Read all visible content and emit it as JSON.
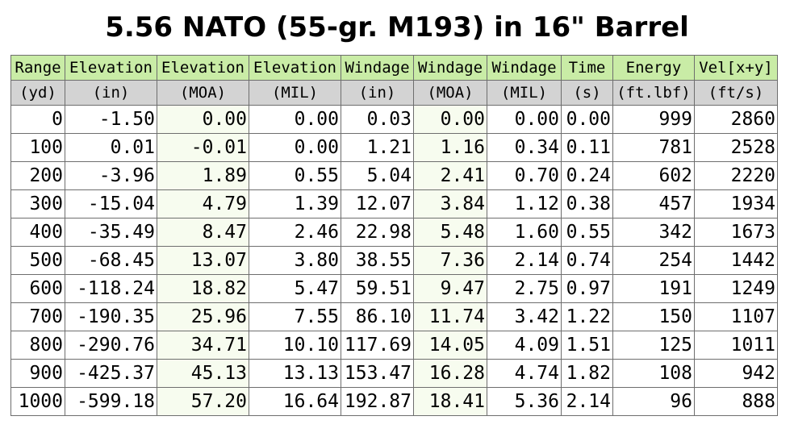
{
  "title": "5.56 NATO (55-gr. M193) in 16\" Barrel",
  "columns": [
    {
      "header": "Range",
      "unit": "(yd)"
    },
    {
      "header": "Elevation",
      "unit": "(in)"
    },
    {
      "header": "Elevation",
      "unit": "(MOA)"
    },
    {
      "header": "Elevation",
      "unit": "(MIL)"
    },
    {
      "header": "Windage",
      "unit": "(in)"
    },
    {
      "header": "Windage",
      "unit": "(MOA)"
    },
    {
      "header": "Windage",
      "unit": "(MIL)"
    },
    {
      "header": "Time",
      "unit": "(s)"
    },
    {
      "header": "Energy",
      "unit": "(ft.lbf)"
    },
    {
      "header": "Vel[x+y]",
      "unit": "(ft/s)"
    }
  ],
  "rows": [
    [
      "0",
      "-1.50",
      "0.00",
      "0.00",
      "0.03",
      "0.00",
      "0.00",
      "0.00",
      "999",
      "2860"
    ],
    [
      "100",
      "0.01",
      "-0.01",
      "0.00",
      "1.21",
      "1.16",
      "0.34",
      "0.11",
      "781",
      "2528"
    ],
    [
      "200",
      "-3.96",
      "1.89",
      "0.55",
      "5.04",
      "2.41",
      "0.70",
      "0.24",
      "602",
      "2220"
    ],
    [
      "300",
      "-15.04",
      "4.79",
      "1.39",
      "12.07",
      "3.84",
      "1.12",
      "0.38",
      "457",
      "1934"
    ],
    [
      "400",
      "-35.49",
      "8.47",
      "2.46",
      "22.98",
      "5.48",
      "1.60",
      "0.55",
      "342",
      "1673"
    ],
    [
      "500",
      "-68.45",
      "13.07",
      "3.80",
      "38.55",
      "7.36",
      "2.14",
      "0.74",
      "254",
      "1442"
    ],
    [
      "600",
      "-118.24",
      "18.82",
      "5.47",
      "59.51",
      "9.47",
      "2.75",
      "0.97",
      "191",
      "1249"
    ],
    [
      "700",
      "-190.35",
      "25.96",
      "7.55",
      "86.10",
      "11.74",
      "3.42",
      "1.22",
      "150",
      "1107"
    ],
    [
      "800",
      "-290.76",
      "34.71",
      "10.10",
      "117.69",
      "14.05",
      "4.09",
      "1.51",
      "125",
      "1011"
    ],
    [
      "900",
      "-425.37",
      "45.13",
      "13.13",
      "153.47",
      "16.28",
      "4.74",
      "1.82",
      "108",
      "942"
    ],
    [
      "1000",
      "-599.18",
      "57.20",
      "16.64",
      "192.87",
      "18.41",
      "5.36",
      "2.14",
      "96",
      "888"
    ]
  ],
  "colors": {
    "header_bg": "#c9eca6",
    "unit_bg": "#d3d3d3",
    "tinted_cell_bg": "#f7fcef",
    "border": "#6e6e6e"
  }
}
